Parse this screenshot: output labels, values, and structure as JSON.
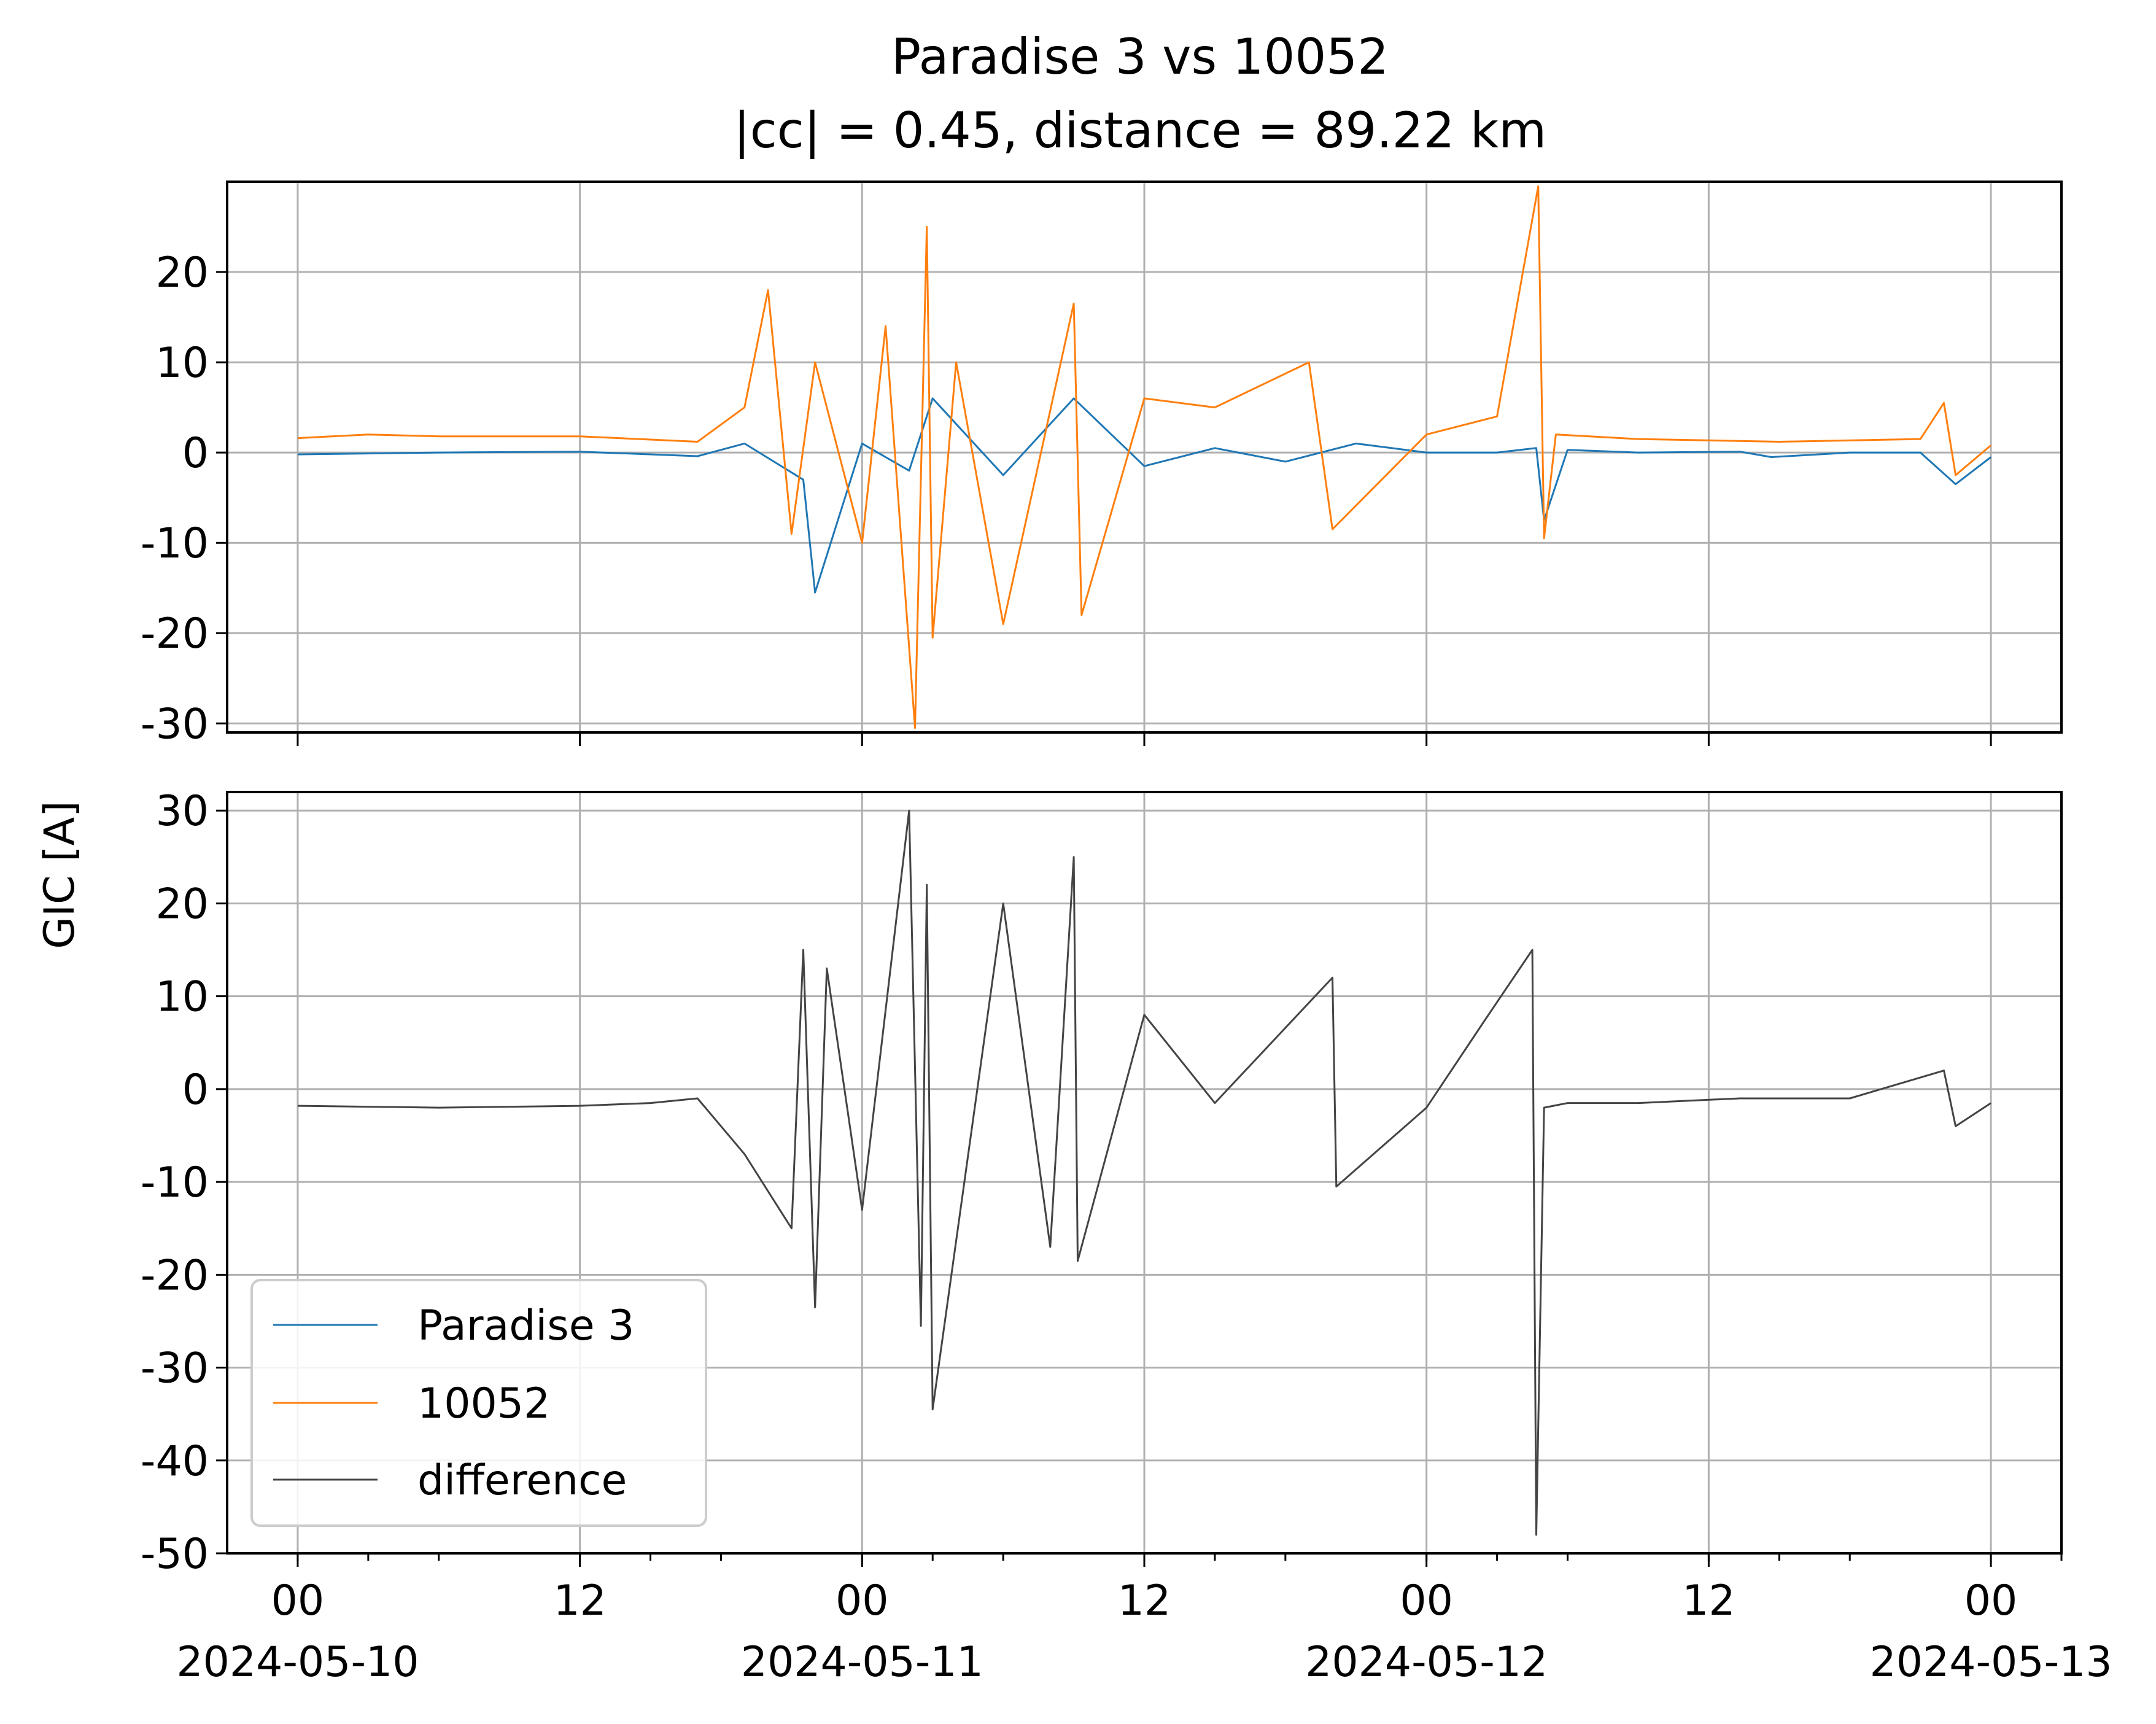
{
  "figure": {
    "title_line1": "Paradise 3 vs 10052",
    "title_line2": "|cc| = 0.45, distance = 89.22 km",
    "ylabel": "GIC [A]"
  },
  "chart_data": [
    {
      "type": "line",
      "panel": "top",
      "title": "Paradise 3 vs 10052 |cc| = 0.45, distance = 89.22 km",
      "xlabel": "",
      "ylabel": "GIC [A]",
      "xlim": [
        "2024-05-09T21:00",
        "2024-05-13T03:00"
      ],
      "ylim": [
        -31,
        30
      ],
      "yticks": [
        -30,
        -20,
        -10,
        0,
        10,
        20
      ],
      "ytick_labels": [
        "-30",
        "-20",
        "-10",
        "0",
        "10",
        "20"
      ],
      "grid": true,
      "series": [
        {
          "name": "Paradise 3",
          "color": "#1f77b4",
          "x": [
            "2024-05-10T00:00",
            "2024-05-10T06:00",
            "2024-05-10T12:00",
            "2024-05-10T17:00",
            "2024-05-10T19:00",
            "2024-05-10T21:30",
            "2024-05-10T22:00",
            "2024-05-11T00:00",
            "2024-05-11T02:00",
            "2024-05-11T03:00",
            "2024-05-11T06:00",
            "2024-05-11T09:00",
            "2024-05-11T12:00",
            "2024-05-11T15:00",
            "2024-05-11T18:00",
            "2024-05-11T21:00",
            "2024-05-12T00:00",
            "2024-05-12T03:00",
            "2024-05-12T04:40",
            "2024-05-12T05:00",
            "2024-05-12T06:00",
            "2024-05-12T09:00",
            "2024-05-12T13:20",
            "2024-05-12T14:40",
            "2024-05-12T18:00",
            "2024-05-12T21:00",
            "2024-05-12T22:30",
            "2024-05-13T00:00"
          ],
          "values": [
            -0.2,
            0.0,
            0.1,
            -0.4,
            1.0,
            -3.0,
            -15.5,
            1.0,
            -2.0,
            6.0,
            -2.5,
            6.0,
            -1.5,
            0.5,
            -1.0,
            1.0,
            0.0,
            0.0,
            0.5,
            -7.5,
            0.3,
            0.0,
            0.1,
            -0.5,
            0.0,
            0.0,
            -3.5,
            -0.5
          ]
        },
        {
          "name": "10052",
          "color": "#ff7f0e",
          "x": [
            "2024-05-10T00:00",
            "2024-05-10T03:00",
            "2024-05-10T06:00",
            "2024-05-10T12:00",
            "2024-05-10T17:00",
            "2024-05-10T19:00",
            "2024-05-10T20:00",
            "2024-05-10T21:00",
            "2024-05-10T22:00",
            "2024-05-11T00:00",
            "2024-05-11T01:00",
            "2024-05-11T02:15",
            "2024-05-11T02:45",
            "2024-05-11T03:00",
            "2024-05-11T04:00",
            "2024-05-11T06:00",
            "2024-05-11T09:00",
            "2024-05-11T09:20",
            "2024-05-11T12:00",
            "2024-05-11T15:00",
            "2024-05-11T19:00",
            "2024-05-11T20:00",
            "2024-05-12T00:00",
            "2024-05-12T03:00",
            "2024-05-12T04:45",
            "2024-05-12T05:00",
            "2024-05-12T05:30",
            "2024-05-12T09:00",
            "2024-05-12T15:00",
            "2024-05-12T21:00",
            "2024-05-12T22:00",
            "2024-05-12T22:30",
            "2024-05-13T00:00"
          ],
          "values": [
            1.6,
            2.0,
            1.8,
            1.8,
            1.2,
            5.0,
            18.0,
            -9.0,
            10.0,
            -10.0,
            14.0,
            -30.5,
            25.0,
            -20.5,
            10.0,
            -19.0,
            16.5,
            -18.0,
            6.0,
            5.0,
            10.0,
            -8.5,
            2.0,
            4.0,
            29.5,
            -9.5,
            2.0,
            1.5,
            1.2,
            1.5,
            5.5,
            -2.5,
            0.8
          ]
        }
      ]
    },
    {
      "type": "line",
      "panel": "bottom",
      "xlabel": "",
      "ylabel": "GIC [A]",
      "xlim": [
        "2024-05-09T21:00",
        "2024-05-13T03:00"
      ],
      "ylim": [
        -50,
        32
      ],
      "yticks": [
        -50,
        -40,
        -30,
        -20,
        -10,
        0,
        10,
        20,
        30
      ],
      "ytick_labels": [
        "-50",
        "-40",
        "-30",
        "-20",
        "-10",
        "0",
        "10",
        "20",
        "30"
      ],
      "xticks": [
        "2024-05-10T00:00",
        "2024-05-10T12:00",
        "2024-05-11T00:00",
        "2024-05-11T12:00",
        "2024-05-12T00:00",
        "2024-05-12T12:00",
        "2024-05-13T00:00"
      ],
      "xtick_labels": [
        [
          "00",
          "2024-05-10"
        ],
        [
          "12",
          ""
        ],
        [
          "00",
          "2024-05-11"
        ],
        [
          "12",
          ""
        ],
        [
          "00",
          "2024-05-12"
        ],
        [
          "12",
          ""
        ],
        [
          "00",
          "2024-05-13"
        ]
      ],
      "grid": true,
      "legend": "lower-left",
      "series": [
        {
          "name": "difference",
          "color": "#444444",
          "x": [
            "2024-05-10T00:00",
            "2024-05-10T06:00",
            "2024-05-10T12:00",
            "2024-05-10T15:00",
            "2024-05-10T17:00",
            "2024-05-10T19:00",
            "2024-05-10T21:00",
            "2024-05-10T21:30",
            "2024-05-10T22:00",
            "2024-05-10T22:30",
            "2024-05-11T00:00",
            "2024-05-11T02:00",
            "2024-05-11T02:30",
            "2024-05-11T02:45",
            "2024-05-11T03:00",
            "2024-05-11T06:00",
            "2024-05-11T08:00",
            "2024-05-11T09:00",
            "2024-05-11T09:10",
            "2024-05-11T12:00",
            "2024-05-11T15:00",
            "2024-05-11T20:00",
            "2024-05-11T20:10",
            "2024-05-12T00:00",
            "2024-05-12T02:30",
            "2024-05-12T04:30",
            "2024-05-12T04:40",
            "2024-05-12T05:00",
            "2024-05-12T06:00",
            "2024-05-12T09:00",
            "2024-05-12T13:20",
            "2024-05-12T15:00",
            "2024-05-12T18:00",
            "2024-05-12T22:00",
            "2024-05-12T22:30",
            "2024-05-13T00:00"
          ],
          "values": [
            -1.8,
            -2.0,
            -1.8,
            -1.5,
            -1.0,
            -7.0,
            -15.0,
            15.0,
            -23.5,
            13.0,
            -13.0,
            30.0,
            -25.5,
            22.0,
            -34.5,
            20.0,
            -17.0,
            25.0,
            -18.5,
            8.0,
            -1.5,
            12.0,
            -10.5,
            -2.0,
            7.5,
            15.0,
            -48.0,
            -2.0,
            -1.5,
            -1.5,
            -1.0,
            -1.0,
            -1.0,
            2.0,
            -4.0,
            -1.5
          ]
        }
      ]
    }
  ]
}
